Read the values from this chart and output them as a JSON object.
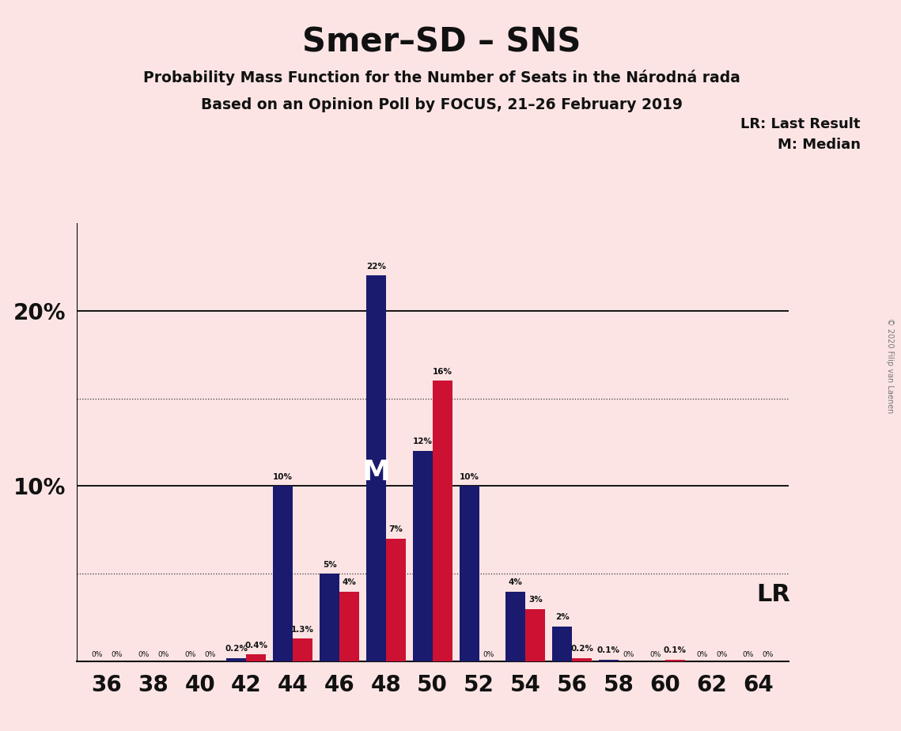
{
  "title": "Smer–SD – SNS",
  "subtitle1": "Probability Mass Function for the Number of Seats in the Národná rada",
  "subtitle2": "Based on an Opinion Poll by FOCUS, 21–26 February 2019",
  "copyright": "© 2020 Filip van Laenen",
  "seats": [
    36,
    38,
    40,
    42,
    44,
    46,
    48,
    50,
    52,
    54,
    56,
    58,
    60,
    62,
    64
  ],
  "pmf_blue": [
    0.0,
    0.0,
    0.0,
    0.2,
    10.0,
    5.0,
    22.0,
    12.0,
    10.0,
    4.0,
    2.0,
    0.1,
    0.0,
    0.0,
    0.0
  ],
  "lr_red": [
    0.0,
    0.0,
    0.0,
    0.4,
    1.3,
    4.0,
    7.0,
    16.0,
    0.0,
    3.0,
    0.2,
    0.0,
    0.1,
    0.0,
    0.0
  ],
  "blue_color": "#1a1a6e",
  "red_color": "#cc1133",
  "bg_color": "#fce4e4",
  "median_seat": 48,
  "bar_width": 0.85,
  "figsize": [
    11.39,
    9.24
  ]
}
